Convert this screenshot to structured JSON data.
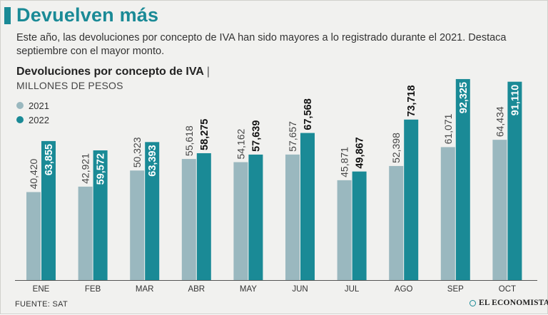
{
  "header": {
    "title": "Devuelven más",
    "subtitle": "Este año, las devoluciones por concepto de IVA han sido mayores a lo registrado durante el 2021. Destaca septiembre con el mayor monto."
  },
  "footer": {
    "source": "FUENTE: SAT",
    "brand": "EL ECONOMISTA"
  },
  "colors": {
    "accent": "#1a8a96",
    "series_2021": "#9ab8bf",
    "series_2022": "#1a8a96",
    "background": "#f1f1ef"
  },
  "chart_data": {
    "type": "bar",
    "title": "Devoluciones por concepto de IVA",
    "unit_label": "MILLONES DE PESOS",
    "categories": [
      "ENE",
      "FEB",
      "MAR",
      "ABR",
      "MAY",
      "JUN",
      "JUL",
      "AGO",
      "SEP",
      "OCT"
    ],
    "series": [
      {
        "name": "2021",
        "values": [
          40420,
          42921,
          50323,
          55618,
          54162,
          57657,
          45871,
          52398,
          61071,
          64434
        ],
        "labels": [
          "40,420",
          "42,921",
          "50,323",
          "55,618",
          "54,162",
          "57,657",
          "45,871",
          "52,398",
          "61,071",
          "64,434"
        ]
      },
      {
        "name": "2022",
        "values": [
          63855,
          59572,
          63393,
          58275,
          57639,
          67568,
          49867,
          73718,
          92325,
          91110
        ],
        "labels": [
          "63,855",
          "59,572",
          "63,393",
          "58,275",
          "57,639",
          "67,568",
          "49,867",
          "73,718",
          "92,325",
          "91,110"
        ]
      }
    ],
    "ylim": [
      0,
      100000
    ],
    "grid": false,
    "legend": "top-left"
  }
}
